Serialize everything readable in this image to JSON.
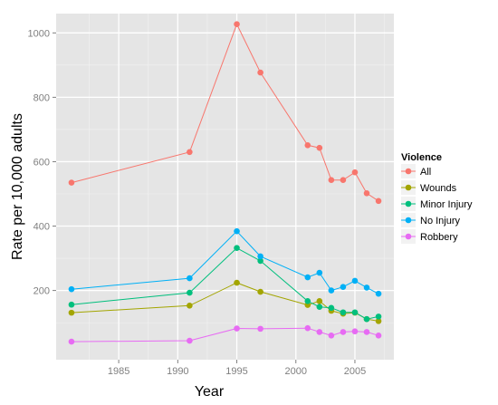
{
  "chart_data": {
    "type": "line",
    "title": "",
    "xlabel": "Year",
    "ylabel": "Rate per 10,000 adults",
    "xlim": [
      1979.7,
      2008.3
    ],
    "ylim": [
      -15,
      1060
    ],
    "x_ticks": [
      1985,
      1990,
      1995,
      2000,
      2005
    ],
    "y_ticks": [
      200,
      400,
      600,
      800,
      1000
    ],
    "grid": true,
    "legend": {
      "title": "Violence",
      "position": "right"
    },
    "series": [
      {
        "name": "All",
        "color": "#F8766D",
        "points": [
          [
            1981,
            535
          ],
          [
            1991,
            630
          ],
          [
            1995,
            1027
          ],
          [
            1997,
            877
          ],
          [
            2001,
            651
          ],
          [
            2002,
            643
          ],
          [
            2003,
            543
          ],
          [
            2004,
            543
          ],
          [
            2005,
            567
          ],
          [
            2006,
            502
          ],
          [
            2007,
            478
          ]
        ]
      },
      {
        "name": "Wounds",
        "color": "#A3A500",
        "points": [
          [
            1981,
            131
          ],
          [
            1991,
            153
          ],
          [
            1995,
            224
          ],
          [
            1997,
            196
          ],
          [
            2001,
            155
          ],
          [
            2002,
            167
          ],
          [
            2003,
            137
          ],
          [
            2004,
            128
          ],
          [
            2005,
            131
          ],
          [
            2006,
            111
          ],
          [
            2007,
            105
          ]
        ]
      },
      {
        "name": "Minor Injury",
        "color": "#00BF7D",
        "points": [
          [
            1981,
            156
          ],
          [
            1991,
            193
          ],
          [
            1995,
            332
          ],
          [
            1997,
            292
          ],
          [
            2001,
            167
          ],
          [
            2002,
            149
          ],
          [
            2003,
            146
          ],
          [
            2004,
            132
          ],
          [
            2005,
            132
          ],
          [
            2006,
            111
          ],
          [
            2007,
            119
          ]
        ]
      },
      {
        "name": "No Injury",
        "color": "#00B0F6",
        "points": [
          [
            1981,
            204
          ],
          [
            1991,
            238
          ],
          [
            1995,
            384
          ],
          [
            1997,
            306
          ],
          [
            2001,
            241
          ],
          [
            2002,
            255
          ],
          [
            2003,
            200
          ],
          [
            2004,
            211
          ],
          [
            2005,
            230
          ],
          [
            2006,
            209
          ],
          [
            2007,
            190
          ]
        ]
      },
      {
        "name": "Robbery",
        "color": "#E76BF3",
        "points": [
          [
            1981,
            41
          ],
          [
            1991,
            44
          ],
          [
            1995,
            82
          ],
          [
            1997,
            81
          ],
          [
            2001,
            83
          ],
          [
            2002,
            71
          ],
          [
            2003,
            60
          ],
          [
            2004,
            71
          ],
          [
            2005,
            73
          ],
          [
            2006,
            71
          ],
          [
            2007,
            60
          ]
        ]
      }
    ]
  }
}
